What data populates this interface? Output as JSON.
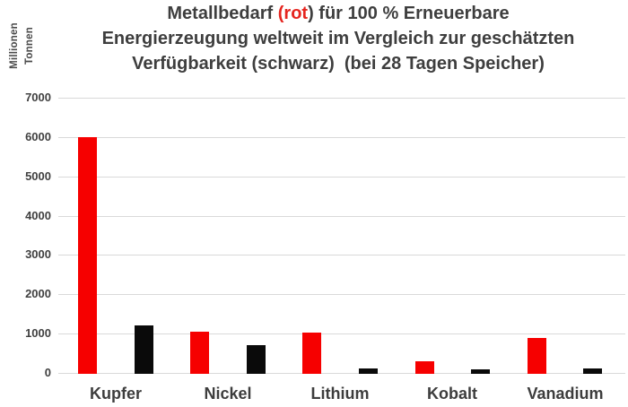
{
  "y_axis_title": {
    "line1": "Millionen",
    "line2": "Tonnen"
  },
  "title": {
    "line1_pre": "Metallbedarf ",
    "line1_red": "(rot",
    "line1_post": ") für 100 % Erneuerbare",
    "line2": "Energierzeugung weltweit im Vergleich zur geschätzten",
    "line3": "Verfügbarkeit (schwarz)  (bei 28 Tagen Speicher)"
  },
  "colors": {
    "demand_red": "#f60000",
    "availability_black": "#0a0a0a",
    "title_red": "#e5251f",
    "text_dark": "#3e3e3e",
    "gridline": "#d9d9d9"
  },
  "chart_data": {
    "type": "bar",
    "title": "Metallbedarf (rot) für 100 % Erneuerbare Energierzeugung weltweit im Vergleich zur geschätzten Verfügbarkeit (schwarz) (bei 28 Tagen Speicher)",
    "categories": [
      "Kupfer",
      "Nickel",
      "Lithium",
      "Kobalt",
      "Vanadium"
    ],
    "series": [
      {
        "name": "Metallbedarf (rot)",
        "color": "#f60000",
        "values": [
          6000,
          1060,
          1030,
          300,
          880
        ]
      },
      {
        "name": "geschätzte Verfügbarkeit (schwarz)",
        "color": "#0a0a0a",
        "values": [
          1200,
          700,
          120,
          80,
          120
        ]
      }
    ],
    "ylabel": "Millionen Tonnen",
    "ylim": [
      0,
      7000
    ],
    "yticks": [
      0,
      1000,
      2000,
      3000,
      4000,
      5000,
      6000,
      7000
    ],
    "grid": true,
    "legend": false
  }
}
